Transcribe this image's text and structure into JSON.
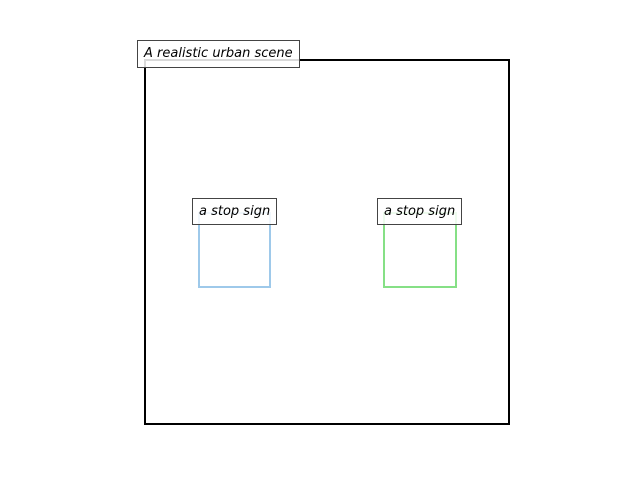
{
  "scene": {
    "caption": "A realistic urban scene",
    "frame_color": "#000000"
  },
  "boxes": [
    {
      "label": "a stop sign",
      "color": "#9ec9ea"
    },
    {
      "label": "a stop sign",
      "color": "#86e086"
    }
  ]
}
